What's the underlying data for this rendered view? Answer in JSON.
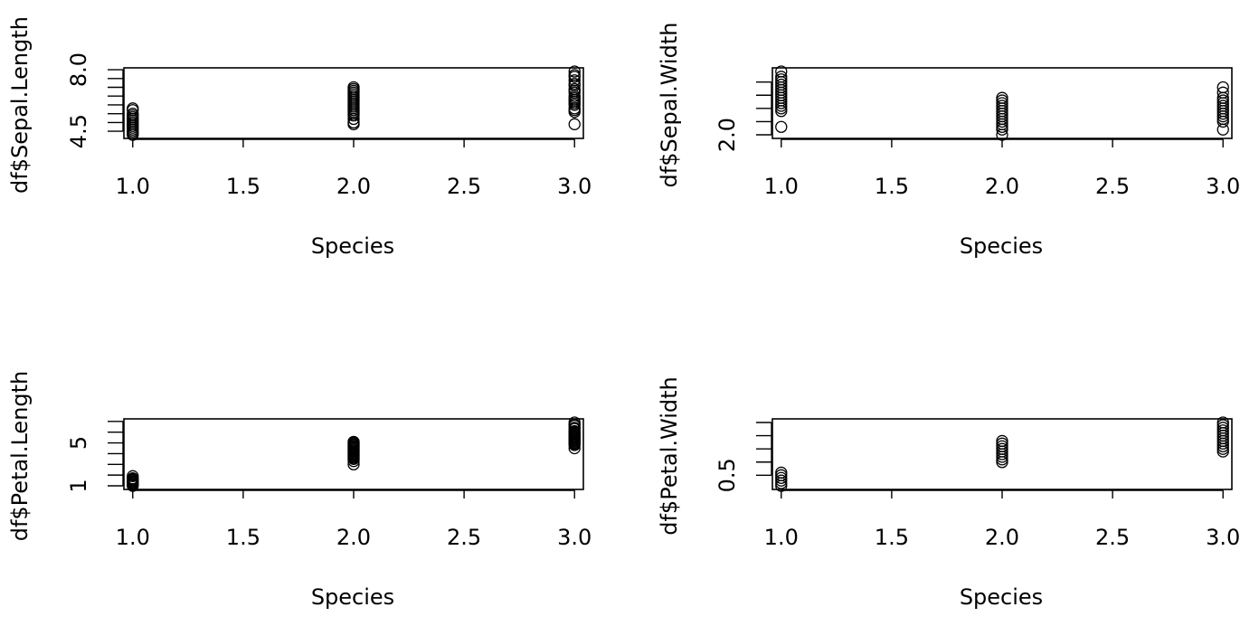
{
  "chart_data": [
    {
      "type": "scatter",
      "xlabel": "Species",
      "ylabel": "df$Sepal.Length",
      "xlim": [
        0.96,
        3.04
      ],
      "ylim": [
        4.3,
        7.9
      ],
      "xticks": [
        1.0,
        1.5,
        2.0,
        2.5,
        3.0
      ],
      "xtick_labels": [
        "1.0",
        "1.5",
        "2.0",
        "2.5",
        "3.0"
      ],
      "yticks": [
        4.5,
        8.0
      ],
      "ytick_labels": [
        "4.5",
        "8.0"
      ],
      "minor_yticks": [
        5.0,
        5.5,
        6.0,
        6.5,
        7.0,
        7.5
      ],
      "grid": false,
      "series": [
        {
          "x": 1,
          "values": [
            4.3,
            4.4,
            4.5,
            4.6,
            4.7,
            4.8,
            4.9,
            5.0,
            5.1,
            5.2,
            5.3,
            5.4,
            5.5,
            5.7,
            5.8
          ]
        },
        {
          "x": 2,
          "values": [
            4.9,
            5.0,
            5.2,
            5.4,
            5.5,
            5.6,
            5.7,
            5.8,
            5.9,
            6.0,
            6.1,
            6.2,
            6.3,
            6.4,
            6.5,
            6.6,
            6.7,
            6.8,
            6.9,
            7.0
          ]
        },
        {
          "x": 3,
          "values": [
            4.9,
            5.6,
            5.7,
            5.8,
            6.0,
            6.1,
            6.2,
            6.3,
            6.4,
            6.5,
            6.7,
            6.8,
            6.9,
            7.1,
            7.2,
            7.4,
            7.6,
            7.7,
            7.9
          ]
        }
      ]
    },
    {
      "type": "scatter",
      "xlabel": "Species",
      "ylabel": "df$Sepal.Width",
      "xlim": [
        0.96,
        3.04
      ],
      "ylim": [
        2.0,
        4.4
      ],
      "xticks": [
        1.0,
        1.5,
        2.0,
        2.5,
        3.0
      ],
      "xtick_labels": [
        "1.0",
        "1.5",
        "2.0",
        "2.5",
        "3.0"
      ],
      "yticks": [
        2.0
      ],
      "ytick_labels": [
        "2.0"
      ],
      "minor_yticks": [
        2.5,
        3.0,
        3.5,
        4.0
      ],
      "grid": false,
      "series": [
        {
          "x": 1,
          "values": [
            2.3,
            2.9,
            3.0,
            3.1,
            3.2,
            3.3,
            3.4,
            3.5,
            3.6,
            3.7,
            3.8,
            3.9,
            4.0,
            4.1,
            4.2,
            4.4
          ]
        },
        {
          "x": 2,
          "values": [
            2.0,
            2.2,
            2.3,
            2.4,
            2.5,
            2.6,
            2.7,
            2.8,
            2.9,
            3.0,
            3.1,
            3.2,
            3.3,
            3.4
          ]
        },
        {
          "x": 3,
          "values": [
            2.2,
            2.5,
            2.6,
            2.7,
            2.8,
            2.9,
            3.0,
            3.1,
            3.2,
            3.3,
            3.4,
            3.6,
            3.8
          ]
        }
      ]
    },
    {
      "type": "scatter",
      "xlabel": "Species",
      "ylabel": "df$Petal.Length",
      "xlim": [
        0.96,
        3.04
      ],
      "ylim": [
        1.0,
        6.9
      ],
      "xticks": [
        1.0,
        1.5,
        2.0,
        2.5,
        3.0
      ],
      "xtick_labels": [
        "1.0",
        "1.5",
        "2.0",
        "2.5",
        "3.0"
      ],
      "yticks": [
        1,
        5
      ],
      "ytick_labels": [
        "1",
        "5"
      ],
      "minor_yticks": [
        2,
        3,
        4,
        6,
        7
      ],
      "grid": false,
      "series": [
        {
          "x": 1,
          "values": [
            1.0,
            1.1,
            1.2,
            1.3,
            1.4,
            1.5,
            1.6,
            1.7,
            1.9
          ]
        },
        {
          "x": 2,
          "values": [
            3.0,
            3.3,
            3.5,
            3.6,
            3.7,
            3.8,
            3.9,
            4.0,
            4.1,
            4.2,
            4.3,
            4.4,
            4.5,
            4.6,
            4.7,
            4.8,
            4.9,
            5.0,
            5.1
          ]
        },
        {
          "x": 3,
          "values": [
            4.5,
            4.8,
            4.9,
            5.0,
            5.1,
            5.2,
            5.3,
            5.4,
            5.5,
            5.6,
            5.7,
            5.8,
            5.9,
            6.0,
            6.1,
            6.3,
            6.4,
            6.6,
            6.7,
            6.9
          ]
        }
      ]
    },
    {
      "type": "scatter",
      "xlabel": "Species",
      "ylabel": "df$Petal.Width",
      "xlim": [
        0.96,
        3.04
      ],
      "ylim": [
        0.1,
        2.5
      ],
      "xticks": [
        1.0,
        1.5,
        2.0,
        2.5,
        3.0
      ],
      "xtick_labels": [
        "1.0",
        "1.5",
        "2.0",
        "2.5",
        "3.0"
      ],
      "yticks": [
        0.5
      ],
      "ytick_labels": [
        "0.5"
      ],
      "minor_yticks": [
        1.0,
        1.5,
        2.0,
        2.5
      ],
      "grid": false,
      "series": [
        {
          "x": 1,
          "values": [
            0.1,
            0.2,
            0.3,
            0.4,
            0.5,
            0.6
          ]
        },
        {
          "x": 2,
          "values": [
            1.0,
            1.1,
            1.2,
            1.3,
            1.4,
            1.5,
            1.6,
            1.7,
            1.8
          ]
        },
        {
          "x": 3,
          "values": [
            1.4,
            1.5,
            1.6,
            1.7,
            1.8,
            1.9,
            2.0,
            2.1,
            2.2,
            2.3,
            2.4,
            2.5
          ]
        }
      ]
    }
  ]
}
